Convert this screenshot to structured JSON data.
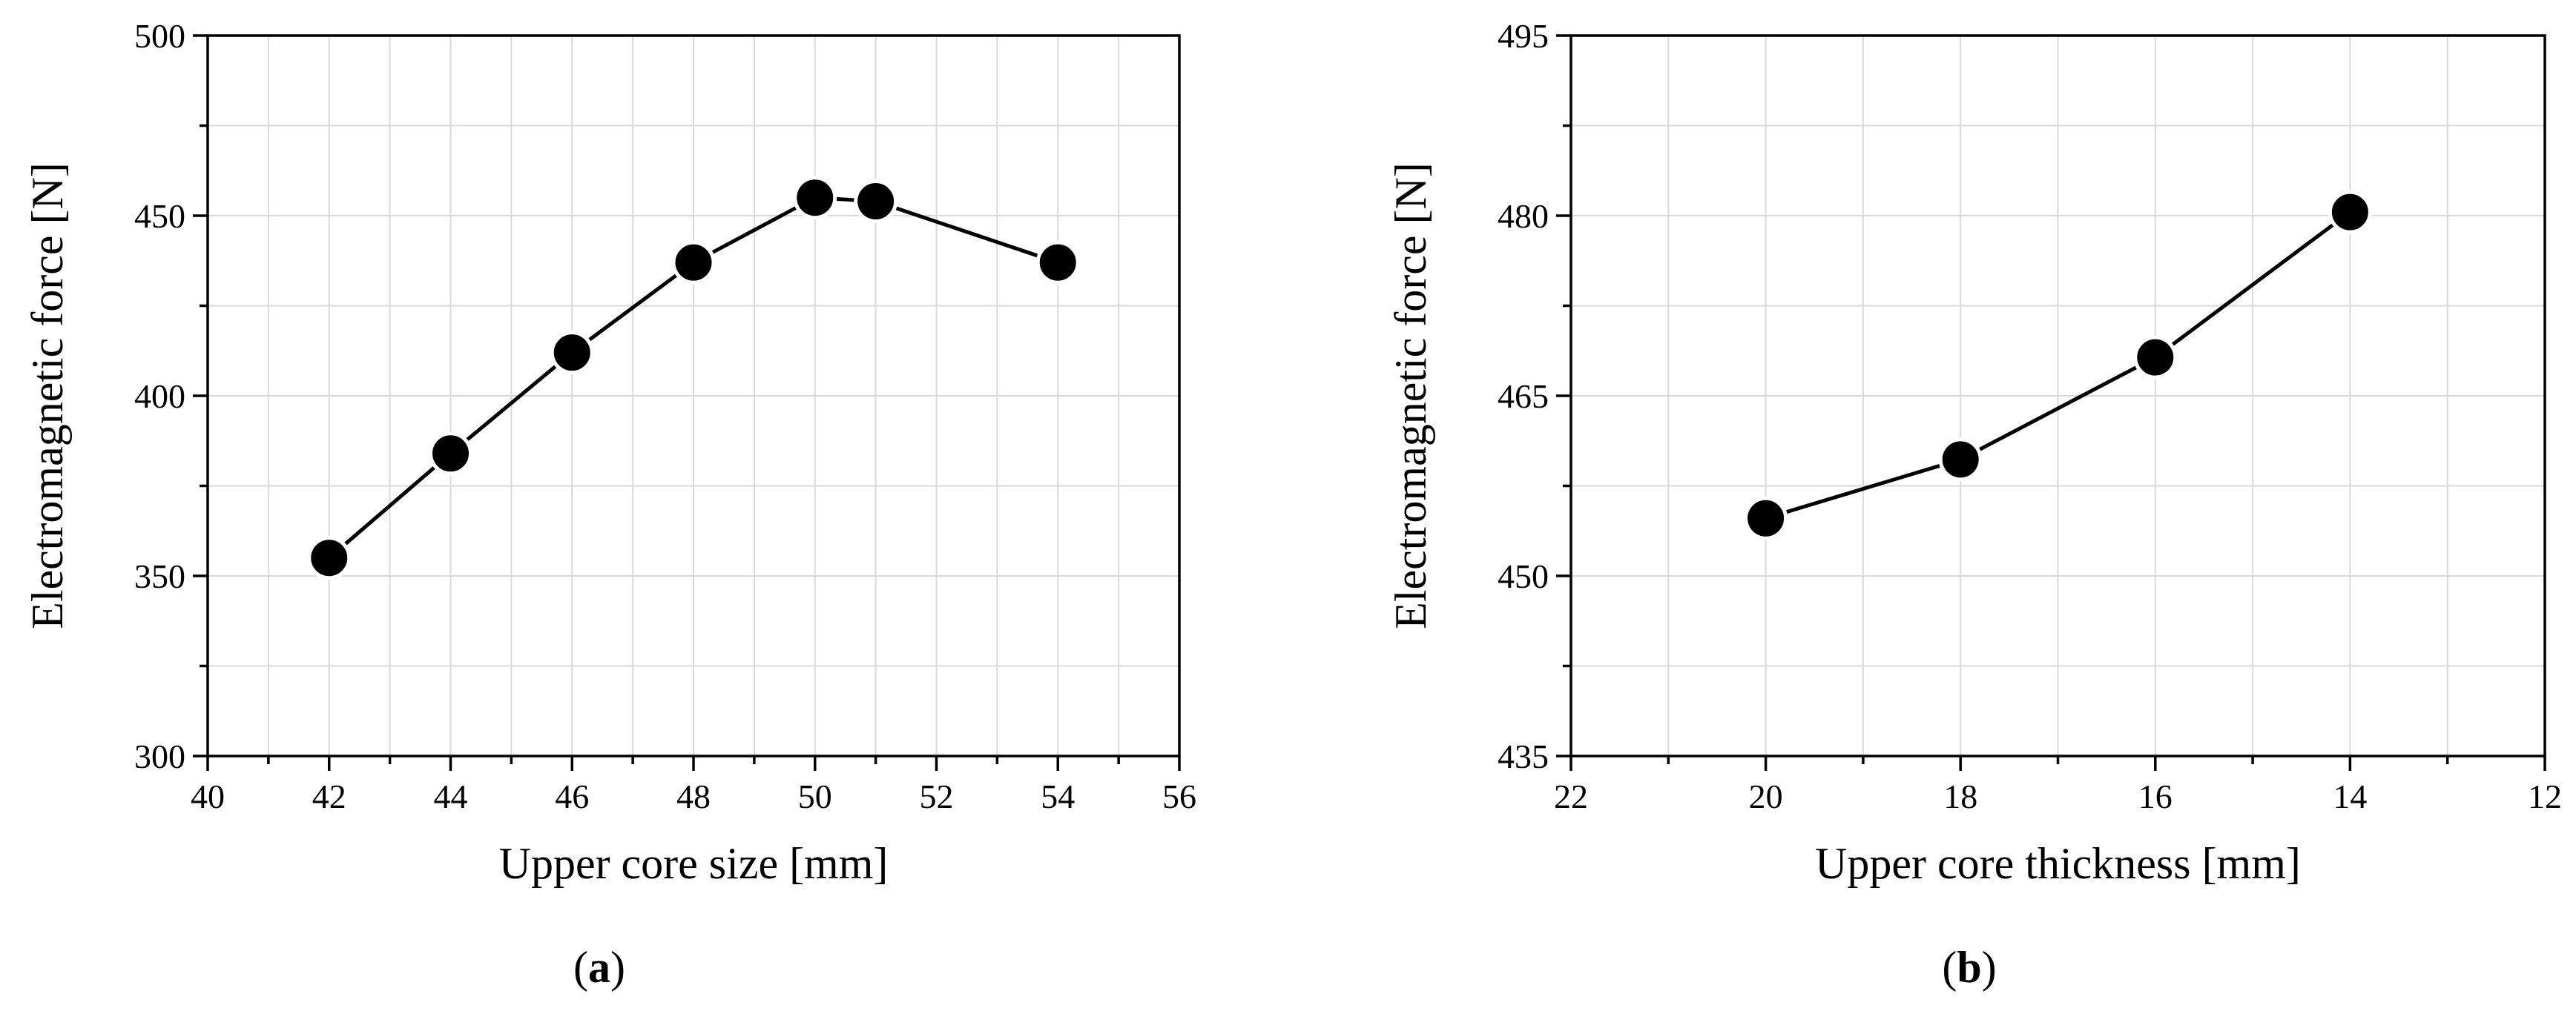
{
  "chart_data": [
    {
      "type": "line",
      "panel": "a",
      "xlabel": "Upper core size [mm]",
      "ylabel": "Electromagnetic force [N]",
      "xlim": [
        40,
        56
      ],
      "ylim": [
        300,
        500
      ],
      "xticks": [
        40,
        42,
        44,
        46,
        48,
        50,
        52,
        54,
        56
      ],
      "yticks": [
        300,
        350,
        400,
        450,
        500
      ],
      "x_reversed": false,
      "grid": true,
      "marker": "filled-circle",
      "series": [
        {
          "x": [
            42,
            44,
            46,
            48,
            50,
            51,
            54
          ],
          "y": [
            355,
            384,
            412,
            437,
            455,
            454,
            437
          ]
        }
      ]
    },
    {
      "type": "line",
      "panel": "b",
      "xlabel": "Upper core thickness [mm]",
      "ylabel": "Electromagnetic force [N]",
      "xlim": [
        22,
        12
      ],
      "ylim": [
        435,
        495
      ],
      "xticks": [
        22,
        20,
        18,
        16,
        14,
        12
      ],
      "yticks": [
        435,
        450,
        465,
        480,
        495
      ],
      "x_reversed": true,
      "grid": true,
      "marker": "filled-circle",
      "series": [
        {
          "x": [
            20,
            18,
            16,
            14
          ],
          "y": [
            454.8,
            459.7,
            468.2,
            480.3
          ]
        }
      ]
    }
  ],
  "captions": [
    "a",
    "b"
  ]
}
